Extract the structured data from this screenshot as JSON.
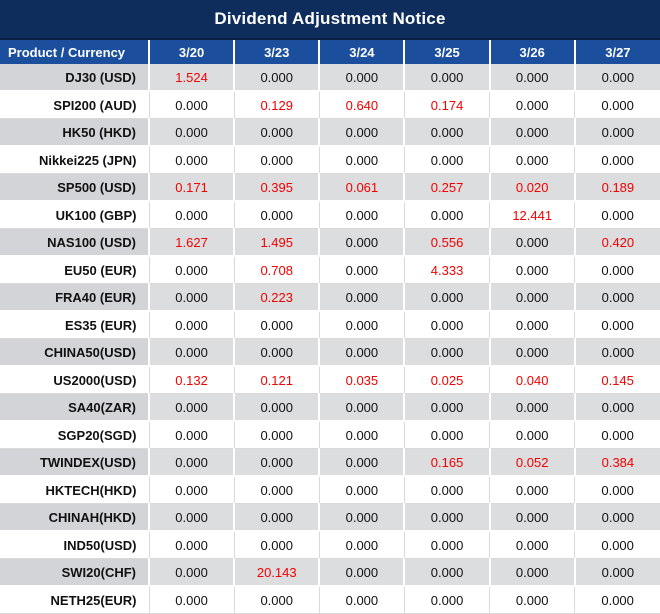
{
  "title_bar": {
    "title": "Dividend Adjustment Notice"
  },
  "colors": {
    "title_bg": "#0e2c5c",
    "header_bg": "#1b4f9e",
    "row_gray": "#dcddde",
    "row_gray_product": "#d2d4d7",
    "grid_light": "#d9d9d9",
    "value_red": "#f40000",
    "header_text": "#ffffff",
    "body_text": "#111111"
  },
  "chart_data": {
    "type": "table",
    "title": "Dividend Adjustment Notice",
    "product_header": "Product / Currency",
    "date_columns": [
      "3/20",
      "3/23",
      "3/24",
      "3/25",
      "3/26",
      "3/27"
    ],
    "rows": [
      {
        "product": "DJ30 (USD)",
        "values": [
          "1.524",
          "0.000",
          "0.000",
          "0.000",
          "0.000",
          "0.000"
        ],
        "red": [
          true,
          false,
          false,
          false,
          false,
          false
        ]
      },
      {
        "product": "SPI200 (AUD)",
        "values": [
          "0.000",
          "0.129",
          "0.640",
          "0.174",
          "0.000",
          "0.000"
        ],
        "red": [
          false,
          true,
          true,
          true,
          false,
          false
        ]
      },
      {
        "product": "HK50 (HKD)",
        "values": [
          "0.000",
          "0.000",
          "0.000",
          "0.000",
          "0.000",
          "0.000"
        ],
        "red": [
          false,
          false,
          false,
          false,
          false,
          false
        ]
      },
      {
        "product": "Nikkei225 (JPN)",
        "values": [
          "0.000",
          "0.000",
          "0.000",
          "0.000",
          "0.000",
          "0.000"
        ],
        "red": [
          false,
          false,
          false,
          false,
          false,
          false
        ]
      },
      {
        "product": "SP500 (USD)",
        "values": [
          "0.171",
          "0.395",
          "0.061",
          "0.257",
          "0.020",
          "0.189"
        ],
        "red": [
          true,
          true,
          true,
          true,
          true,
          true
        ]
      },
      {
        "product": "UK100 (GBP)",
        "values": [
          "0.000",
          "0.000",
          "0.000",
          "0.000",
          "12.441",
          "0.000"
        ],
        "red": [
          false,
          false,
          false,
          false,
          true,
          false
        ]
      },
      {
        "product": "NAS100 (USD)",
        "values": [
          "1.627",
          "1.495",
          "0.000",
          "0.556",
          "0.000",
          "0.420"
        ],
        "red": [
          true,
          true,
          false,
          true,
          false,
          true
        ]
      },
      {
        "product": "EU50 (EUR)",
        "values": [
          "0.000",
          "0.708",
          "0.000",
          "4.333",
          "0.000",
          "0.000"
        ],
        "red": [
          false,
          true,
          false,
          true,
          false,
          false
        ]
      },
      {
        "product": "FRA40 (EUR)",
        "values": [
          "0.000",
          "0.223",
          "0.000",
          "0.000",
          "0.000",
          "0.000"
        ],
        "red": [
          false,
          true,
          false,
          false,
          false,
          false
        ]
      },
      {
        "product": "ES35 (EUR)",
        "values": [
          "0.000",
          "0.000",
          "0.000",
          "0.000",
          "0.000",
          "0.000"
        ],
        "red": [
          false,
          false,
          false,
          false,
          false,
          false
        ]
      },
      {
        "product": "CHINA50(USD)",
        "values": [
          "0.000",
          "0.000",
          "0.000",
          "0.000",
          "0.000",
          "0.000"
        ],
        "red": [
          false,
          false,
          false,
          false,
          false,
          false
        ]
      },
      {
        "product": "US2000(USD)",
        "values": [
          "0.132",
          "0.121",
          "0.035",
          "0.025",
          "0.040",
          "0.145"
        ],
        "red": [
          true,
          true,
          true,
          true,
          true,
          true
        ]
      },
      {
        "product": "SA40(ZAR)",
        "values": [
          "0.000",
          "0.000",
          "0.000",
          "0.000",
          "0.000",
          "0.000"
        ],
        "red": [
          false,
          false,
          false,
          false,
          false,
          false
        ]
      },
      {
        "product": "SGP20(SGD)",
        "values": [
          "0.000",
          "0.000",
          "0.000",
          "0.000",
          "0.000",
          "0.000"
        ],
        "red": [
          false,
          false,
          false,
          false,
          false,
          false
        ]
      },
      {
        "product": "TWINDEX(USD)",
        "values": [
          "0.000",
          "0.000",
          "0.000",
          "0.165",
          "0.052",
          "0.384"
        ],
        "red": [
          false,
          false,
          false,
          true,
          true,
          true
        ]
      },
      {
        "product": "HKTECH(HKD)",
        "values": [
          "0.000",
          "0.000",
          "0.000",
          "0.000",
          "0.000",
          "0.000"
        ],
        "red": [
          false,
          false,
          false,
          false,
          false,
          false
        ]
      },
      {
        "product": "CHINAH(HKD)",
        "values": [
          "0.000",
          "0.000",
          "0.000",
          "0.000",
          "0.000",
          "0.000"
        ],
        "red": [
          false,
          false,
          false,
          false,
          false,
          false
        ]
      },
      {
        "product": "IND50(USD)",
        "values": [
          "0.000",
          "0.000",
          "0.000",
          "0.000",
          "0.000",
          "0.000"
        ],
        "red": [
          false,
          false,
          false,
          false,
          false,
          false
        ]
      },
      {
        "product": "SWI20(CHF)",
        "values": [
          "0.000",
          "20.143",
          "0.000",
          "0.000",
          "0.000",
          "0.000"
        ],
        "red": [
          false,
          true,
          false,
          false,
          false,
          false
        ]
      },
      {
        "product": "NETH25(EUR)",
        "values": [
          "0.000",
          "0.000",
          "0.000",
          "0.000",
          "0.000",
          "0.000"
        ],
        "red": [
          false,
          false,
          false,
          false,
          false,
          false
        ]
      }
    ]
  }
}
